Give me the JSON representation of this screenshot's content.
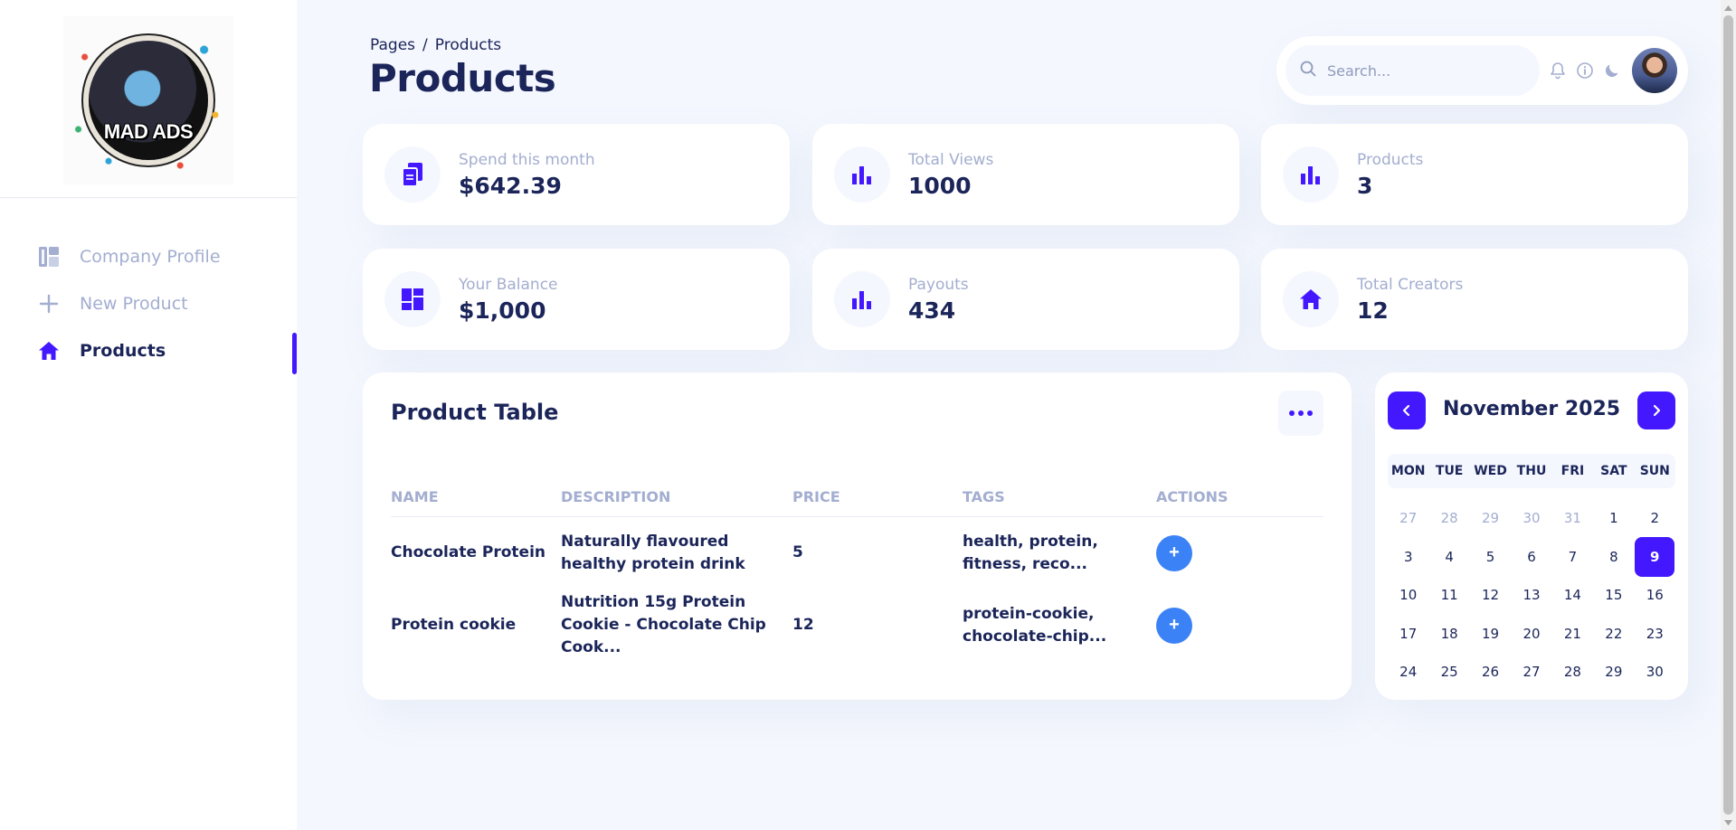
{
  "brand": {
    "logo_text": "MAD ADS"
  },
  "sidebar": {
    "items": [
      {
        "label": "Company Profile",
        "icon": "dashboard-icon",
        "active": false
      },
      {
        "label": "New Product",
        "icon": "plus-icon",
        "active": false
      },
      {
        "label": "Products",
        "icon": "home-icon",
        "active": true
      }
    ]
  },
  "header": {
    "breadcrumb": {
      "root": "Pages",
      "separator": "/",
      "current": "Products"
    },
    "title": "Products"
  },
  "topbar": {
    "search": {
      "placeholder": "Search...",
      "value": ""
    },
    "icons": [
      "bell-icon",
      "info-icon",
      "moon-icon"
    ]
  },
  "stats": [
    {
      "label": "Spend this month",
      "value": "$642.39",
      "icon": "documents-icon"
    },
    {
      "label": "Total Views",
      "value": "1000",
      "icon": "bar-chart-icon"
    },
    {
      "label": "Products",
      "value": "3",
      "icon": "bar-chart-icon"
    },
    {
      "label": "Your Balance",
      "value": "$1,000",
      "icon": "dashboard-icon"
    },
    {
      "label": "Payouts",
      "value": "434",
      "icon": "bar-chart-icon"
    },
    {
      "label": "Total Creators",
      "value": "12",
      "icon": "home-icon"
    }
  ],
  "product_table": {
    "title": "Product Table",
    "columns": [
      "NAME",
      "DESCRIPTION",
      "PRICE",
      "TAGS",
      "ACTIONS"
    ],
    "rows": [
      {
        "name": "Chocolate Protein",
        "description": "Naturally flavoured healthy protein drink",
        "price": "5",
        "tags": "health, protein, fitness, reco...",
        "action": "+"
      },
      {
        "name": "Protein cookie",
        "description": "Nutrition 15g Protein Cookie - Chocolate Chip Cook...",
        "price": "12",
        "tags": "protein-cookie, chocolate-chip...",
        "action": "+"
      }
    ]
  },
  "calendar": {
    "month_label": "November 2025",
    "weekdays": [
      "MON",
      "TUE",
      "WED",
      "THU",
      "FRI",
      "SAT",
      "SUN"
    ],
    "days": [
      {
        "d": "27",
        "muted": true
      },
      {
        "d": "28",
        "muted": true
      },
      {
        "d": "29",
        "muted": true
      },
      {
        "d": "30",
        "muted": true
      },
      {
        "d": "31",
        "muted": true
      },
      {
        "d": "1"
      },
      {
        "d": "2"
      },
      {
        "d": "3"
      },
      {
        "d": "4"
      },
      {
        "d": "5"
      },
      {
        "d": "6"
      },
      {
        "d": "7"
      },
      {
        "d": "8"
      },
      {
        "d": "9",
        "selected": true
      },
      {
        "d": "10"
      },
      {
        "d": "11"
      },
      {
        "d": "12"
      },
      {
        "d": "13"
      },
      {
        "d": "14"
      },
      {
        "d": "15"
      },
      {
        "d": "16"
      },
      {
        "d": "17"
      },
      {
        "d": "18"
      },
      {
        "d": "19"
      },
      {
        "d": "20"
      },
      {
        "d": "21"
      },
      {
        "d": "22"
      },
      {
        "d": "23"
      },
      {
        "d": "24"
      },
      {
        "d": "25"
      },
      {
        "d": "26"
      },
      {
        "d": "27"
      },
      {
        "d": "28"
      },
      {
        "d": "29"
      },
      {
        "d": "30"
      }
    ]
  },
  "colors": {
    "accent": "#4318ff",
    "action": "#3b82f6",
    "text": "#1b2559",
    "muted": "#a3aed0",
    "background": "#f4f7fe"
  }
}
